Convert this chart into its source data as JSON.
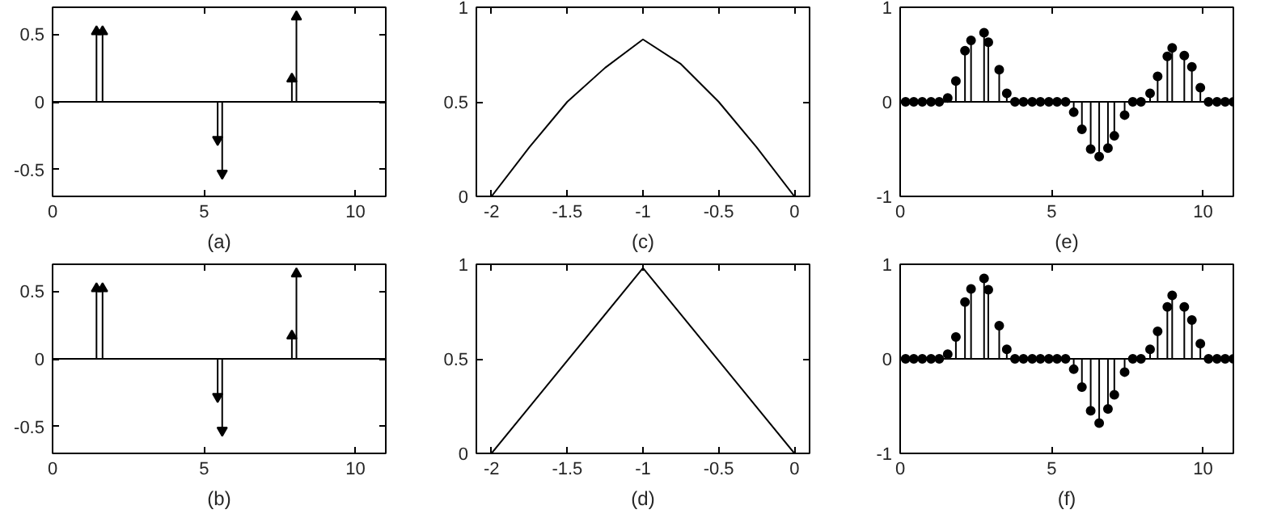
{
  "chart_data": [
    {
      "type": "lollipop",
      "xlabel": "(a)",
      "x": [
        1.45,
        1.65,
        5.45,
        5.6,
        7.9,
        8.05
      ],
      "values": [
        0.52,
        0.52,
        -0.28,
        -0.53,
        0.17,
        0.63
      ],
      "color": "#000000",
      "marker": "triangle",
      "xlim": [
        0,
        11
      ],
      "ylim": [
        -0.7,
        0.7
      ],
      "xticks": [
        0,
        5,
        10
      ],
      "yticks": [
        -0.5,
        0,
        0.5
      ],
      "ref_lines": [
        {
          "axis": "y",
          "value": 0
        }
      ]
    },
    {
      "type": "line",
      "xlabel": "(c)",
      "x": [
        -2,
        -1.75,
        -1.5,
        -1.25,
        -1,
        -0.75,
        -0.5,
        -0.25,
        0
      ],
      "values": [
        0,
        0.26,
        0.5,
        0.68,
        0.83,
        0.7,
        0.5,
        0.26,
        0
      ],
      "color": "#000000",
      "xlim": [
        -2.1,
        0.1
      ],
      "ylim": [
        0,
        1
      ],
      "xticks": [
        -2,
        -1.5,
        -1,
        -0.5,
        0
      ],
      "yticks": [
        0,
        0.5,
        1
      ]
    },
    {
      "type": "lollipop",
      "xlabel": "(e)",
      "x": [
        0.18,
        0.45,
        0.73,
        1.02,
        1.29,
        1.57,
        1.84,
        2.14,
        2.34,
        2.77,
        2.91,
        3.27,
        3.52,
        3.79,
        4.07,
        4.36,
        4.63,
        4.91,
        5.18,
        5.46,
        5.73,
        6.0,
        6.29,
        6.57,
        6.86,
        7.07,
        7.41,
        7.68,
        7.95,
        8.25,
        8.5,
        8.82,
        8.98,
        9.38,
        9.63,
        9.91,
        10.18,
        10.46,
        10.73,
        11.0
      ],
      "values": [
        0,
        0,
        0,
        0,
        0,
        0.04,
        0.22,
        0.54,
        0.65,
        0.73,
        0.63,
        0.34,
        0.09,
        0,
        0,
        0,
        0,
        0,
        0,
        0,
        -0.11,
        -0.29,
        -0.5,
        -0.58,
        -0.49,
        -0.36,
        -0.14,
        0,
        0,
        0.09,
        0.27,
        0.48,
        0.57,
        0.49,
        0.37,
        0.15,
        0,
        0,
        0,
        0
      ],
      "color": "#000000",
      "marker": "circle",
      "xlim": [
        0,
        11
      ],
      "ylim": [
        -1,
        1
      ],
      "xticks": [
        0,
        5,
        10
      ],
      "yticks": [
        -1,
        0,
        1
      ],
      "ref_lines": [
        {
          "axis": "y",
          "value": 0
        }
      ]
    },
    {
      "type": "lollipop",
      "xlabel": "(b)",
      "x": [
        1.45,
        1.65,
        5.45,
        5.6,
        7.9,
        8.05
      ],
      "values": [
        0.52,
        0.52,
        -0.28,
        -0.53,
        0.17,
        0.63
      ],
      "color": "#000000",
      "marker": "triangle",
      "xlim": [
        0,
        11
      ],
      "ylim": [
        -0.7,
        0.7
      ],
      "xticks": [
        0,
        5,
        10
      ],
      "yticks": [
        -0.5,
        0,
        0.5
      ],
      "ref_lines": [
        {
          "axis": "y",
          "value": 0
        }
      ]
    },
    {
      "type": "line",
      "xlabel": "(d)",
      "x": [
        -2,
        -1,
        0
      ],
      "values": [
        0,
        0.98,
        0
      ],
      "color": "#000000",
      "xlim": [
        -2.1,
        0.1
      ],
      "ylim": [
        0,
        1
      ],
      "xticks": [
        -2,
        -1.5,
        -1,
        -0.5,
        0
      ],
      "yticks": [
        0,
        0.5,
        1
      ]
    },
    {
      "type": "lollipop",
      "xlabel": "(f)",
      "x": [
        0.18,
        0.45,
        0.73,
        1.02,
        1.29,
        1.57,
        1.84,
        2.14,
        2.34,
        2.77,
        2.91,
        3.27,
        3.52,
        3.79,
        4.07,
        4.36,
        4.63,
        4.91,
        5.18,
        5.46,
        5.73,
        6.0,
        6.29,
        6.57,
        6.86,
        7.07,
        7.41,
        7.68,
        7.95,
        8.25,
        8.5,
        8.82,
        8.98,
        9.38,
        9.63,
        9.91,
        10.18,
        10.46,
        10.73,
        11.0
      ],
      "values": [
        0,
        0,
        0,
        0,
        0,
        0.05,
        0.23,
        0.6,
        0.74,
        0.85,
        0.73,
        0.35,
        0.1,
        0,
        0,
        0,
        0,
        0,
        0,
        0,
        -0.11,
        -0.3,
        -0.55,
        -0.68,
        -0.53,
        -0.38,
        -0.14,
        0,
        0,
        0.1,
        0.29,
        0.55,
        0.67,
        0.55,
        0.41,
        0.16,
        0,
        0,
        0,
        0
      ],
      "color": "#000000",
      "marker": "circle",
      "xlim": [
        0,
        11
      ],
      "ylim": [
        -1,
        1
      ],
      "xticks": [
        0,
        5,
        10
      ],
      "yticks": [
        -1,
        0,
        1
      ],
      "ref_lines": [
        {
          "axis": "y",
          "value": 0
        }
      ]
    }
  ]
}
